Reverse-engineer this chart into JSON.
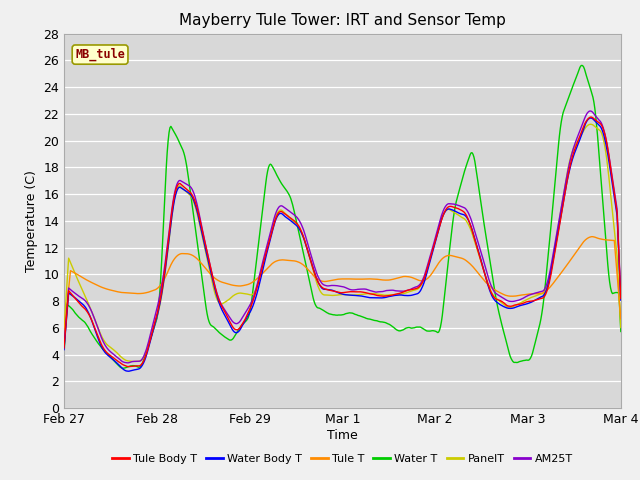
{
  "title": "Mayberry Tule Tower: IRT and Sensor Temp",
  "xlabel": "Time",
  "ylabel": "Temperature (C)",
  "ylim": [
    0,
    28
  ],
  "yticks": [
    0,
    2,
    4,
    6,
    8,
    10,
    12,
    14,
    16,
    18,
    20,
    22,
    24,
    26,
    28
  ],
  "plot_bg_color": "#d8d8d8",
  "fig_bg_color": "#f0f0f0",
  "grid_color": "#ffffff",
  "series": {
    "Tule Body T": {
      "color": "#ff0000"
    },
    "Water Body T": {
      "color": "#0000ff"
    },
    "Tule T": {
      "color": "#ff8c00"
    },
    "Water T": {
      "color": "#00cc00"
    },
    "PanelT": {
      "color": "#cccc00"
    },
    "AM25T": {
      "color": "#8800cc"
    }
  },
  "label_box": {
    "text": "MB_tule",
    "text_color": "#8b0000",
    "bg_color": "#ffffcc",
    "edge_color": "#999900"
  },
  "xtick_labels": [
    "Feb 27",
    "Feb 28",
    "Feb 29",
    "Mar 1",
    "Mar 2",
    "Mar 3",
    "Mar 4"
  ],
  "xtick_positions": [
    0,
    1,
    2,
    3,
    4,
    5,
    6
  ]
}
